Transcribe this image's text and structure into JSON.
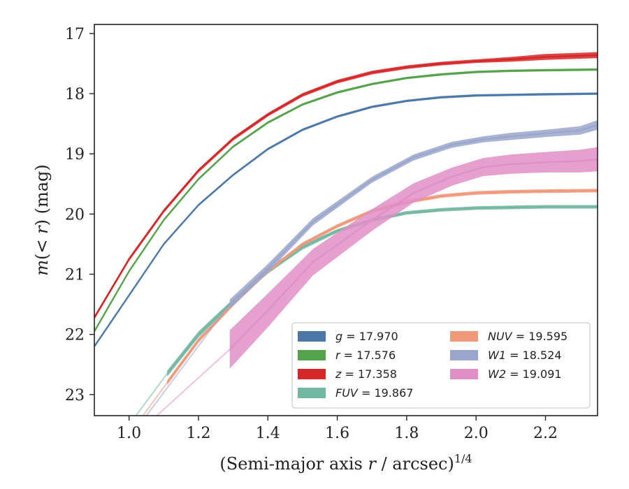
{
  "chart_data": {
    "type": "line",
    "xlabel": "(Semi-major axis r / arcsec)^1/4",
    "ylabel": "m(<r) (mag)",
    "xlim": [
      0.9,
      2.35
    ],
    "ylim": [
      23.35,
      16.85
    ],
    "y_inverted": true,
    "grid": false,
    "legend_position": "lower-right",
    "x_ticks": [
      1.0,
      1.2,
      1.4,
      1.6,
      1.8,
      2.0,
      2.2
    ],
    "y_ticks": [
      17,
      18,
      19,
      20,
      21,
      22,
      23
    ],
    "x_tick_labels": [
      "1.0",
      "1.2",
      "1.4",
      "1.6",
      "1.8",
      "2.0",
      "2.2"
    ],
    "y_tick_labels": [
      "17",
      "18",
      "19",
      "20",
      "21",
      "22",
      "23"
    ],
    "series": [
      {
        "name": "g = 17.970",
        "legend_sym": "g",
        "legend_val": "17.970",
        "color": "#4c78a8",
        "x": [
          0.9,
          1.0,
          1.1,
          1.2,
          1.3,
          1.4,
          1.5,
          1.6,
          1.7,
          1.8,
          1.9,
          2.0,
          2.1,
          2.2,
          2.35
        ],
        "y": [
          22.2,
          21.35,
          20.5,
          19.85,
          19.35,
          18.92,
          18.6,
          18.38,
          18.22,
          18.12,
          18.06,
          18.03,
          18.02,
          18.01,
          18.0
        ],
        "band": [
          0.02,
          0.02,
          0.02,
          0.02,
          0.02,
          0.02,
          0.02,
          0.02,
          0.02,
          0.02,
          0.02,
          0.02,
          0.02,
          0.02,
          0.02
        ]
      },
      {
        "name": "r = 17.576",
        "legend_sym": "r",
        "legend_val": "17.576",
        "color": "#54a24b",
        "x": [
          0.9,
          1.0,
          1.1,
          1.2,
          1.3,
          1.4,
          1.5,
          1.6,
          1.7,
          1.8,
          1.9,
          2.0,
          2.1,
          2.2,
          2.35
        ],
        "y": [
          21.95,
          20.95,
          20.1,
          19.42,
          18.88,
          18.48,
          18.18,
          17.98,
          17.84,
          17.74,
          17.68,
          17.64,
          17.62,
          17.61,
          17.6
        ],
        "band": [
          0.02,
          0.02,
          0.02,
          0.02,
          0.02,
          0.02,
          0.02,
          0.02,
          0.02,
          0.02,
          0.02,
          0.02,
          0.02,
          0.02,
          0.02
        ]
      },
      {
        "name": "z = 17.358",
        "legend_sym": "z",
        "legend_val": "17.358",
        "color": "#d62728",
        "x": [
          0.9,
          1.0,
          1.1,
          1.2,
          1.3,
          1.4,
          1.5,
          1.6,
          1.7,
          1.8,
          1.9,
          2.0,
          2.1,
          2.2,
          2.35
        ],
        "y": [
          21.72,
          20.75,
          19.95,
          19.28,
          18.75,
          18.35,
          18.02,
          17.8,
          17.65,
          17.56,
          17.5,
          17.46,
          17.43,
          17.39,
          17.36
        ],
        "band": [
          0.03,
          0.03,
          0.03,
          0.03,
          0.03,
          0.03,
          0.03,
          0.03,
          0.03,
          0.03,
          0.03,
          0.03,
          0.04,
          0.05,
          0.05
        ]
      },
      {
        "name": "FUV = 19.867",
        "legend_sym": "FUV",
        "legend_val": "19.867",
        "color": "#72b7a1",
        "x": [
          1.11,
          1.2,
          1.3,
          1.4,
          1.5,
          1.6,
          1.7,
          1.8,
          1.9,
          2.0,
          2.1,
          2.2,
          2.35
        ],
        "y": [
          22.65,
          22.0,
          21.45,
          20.95,
          20.55,
          20.28,
          20.1,
          19.98,
          19.93,
          19.9,
          19.89,
          19.88,
          19.88
        ],
        "band": [
          0.05,
          0.05,
          0.04,
          0.04,
          0.04,
          0.03,
          0.03,
          0.03,
          0.03,
          0.03,
          0.03,
          0.03,
          0.03
        ],
        "faint_x": [
          1.02,
          1.11
        ],
        "faint_y": [
          23.35,
          22.65
        ]
      },
      {
        "name": "NUV = 19.595",
        "legend_sym": "NUV",
        "legend_val": "19.595",
        "color": "#f0987a",
        "x": [
          1.11,
          1.2,
          1.3,
          1.4,
          1.5,
          1.6,
          1.7,
          1.8,
          1.9,
          2.0,
          2.1,
          2.2,
          2.35
        ],
        "y": [
          22.8,
          22.1,
          21.5,
          20.95,
          20.5,
          20.2,
          19.95,
          19.8,
          19.7,
          19.65,
          19.63,
          19.62,
          19.61
        ],
        "band": [
          0.04,
          0.04,
          0.03,
          0.03,
          0.03,
          0.03,
          0.03,
          0.03,
          0.03,
          0.03,
          0.03,
          0.03,
          0.03
        ],
        "faint_x": [
          1.04,
          1.11
        ],
        "faint_y": [
          23.35,
          22.8
        ]
      },
      {
        "name": "W1 = 18.524",
        "legend_sym": "W1",
        "legend_val": "18.524",
        "color": "#9aa6cc",
        "x": [
          1.29,
          1.4,
          1.53,
          1.7,
          1.82,
          1.93,
          2.02,
          2.1,
          2.2,
          2.3,
          2.35
        ],
        "y": [
          21.5,
          20.9,
          20.13,
          19.43,
          19.06,
          18.85,
          18.76,
          18.71,
          18.66,
          18.61,
          18.52
        ],
        "band": [
          0.08,
          0.07,
          0.06,
          0.05,
          0.05,
          0.05,
          0.05,
          0.06,
          0.06,
          0.07,
          0.08
        ],
        "faint_x": [
          1.05,
          1.29
        ],
        "faint_y": [
          23.35,
          21.5
        ]
      },
      {
        "name": "W2 = 19.091",
        "legend_sym": "W2",
        "legend_val": "19.091",
        "color": "#e08fc7",
        "x": [
          1.29,
          1.4,
          1.53,
          1.7,
          1.82,
          1.93,
          2.02,
          2.1,
          2.2,
          2.3,
          2.35
        ],
        "y": [
          22.25,
          21.6,
          20.8,
          20.1,
          19.65,
          19.38,
          19.22,
          19.17,
          19.14,
          19.12,
          19.09
        ],
        "band": [
          0.32,
          0.28,
          0.22,
          0.18,
          0.16,
          0.15,
          0.15,
          0.16,
          0.17,
          0.19,
          0.2
        ],
        "faint_x": [
          1.08,
          1.29
        ],
        "faint_y": [
          23.35,
          22.25
        ]
      }
    ]
  }
}
